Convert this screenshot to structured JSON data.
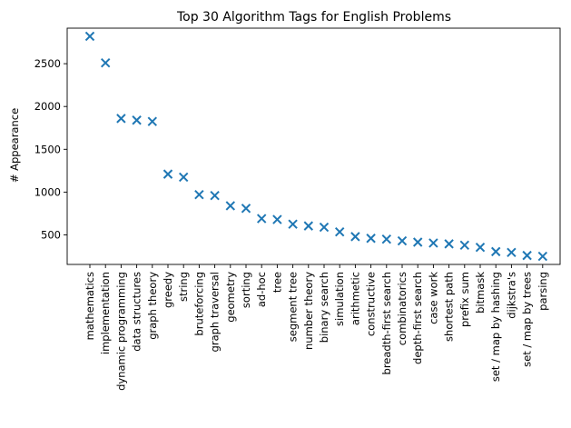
{
  "chart_data": {
    "type": "scatter",
    "title": "Top 30 Algorithm Tags for English Problems",
    "xlabel": "",
    "ylabel": "# Appearance",
    "marker": "x",
    "color": "#1f77b4",
    "grid": false,
    "ylim": [
      155,
      2915
    ],
    "yticks": [
      500,
      1000,
      1500,
      2000,
      2500
    ],
    "categories": [
      "mathematics",
      "implementation",
      "dynamic programming",
      "data structures",
      "graph theory",
      "greedy",
      "string",
      "bruteforcing",
      "graph traversal",
      "geometry",
      "sorting",
      "ad-hoc",
      "tree",
      "segment tree",
      "number theory",
      "binary search",
      "simulation",
      "arithmetic",
      "constructive",
      "breadth-first search",
      "combinatorics",
      "depth-first search",
      "case work",
      "shortest path",
      "prefix sum",
      "bitmask",
      "set / map by hashing",
      "dijkstra's",
      "set / map by trees",
      "parsing"
    ],
    "values": [
      2820,
      2510,
      1860,
      1840,
      1825,
      1210,
      1175,
      970,
      960,
      840,
      810,
      690,
      680,
      625,
      605,
      590,
      535,
      480,
      460,
      450,
      430,
      415,
      405,
      395,
      380,
      355,
      305,
      295,
      260,
      250
    ]
  }
}
